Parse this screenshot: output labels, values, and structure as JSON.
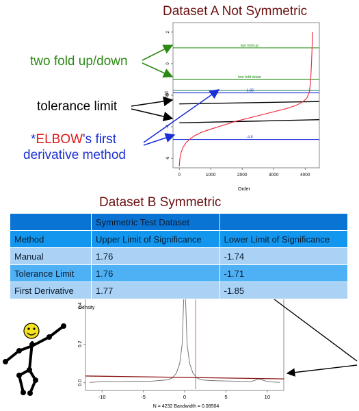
{
  "annotations": {
    "two_fold": "two fold up/down",
    "tolerance": "tolerance limit",
    "elbow_star": "*",
    "elbow_word": "ELBOW",
    "elbow_rest": "'s first",
    "elbow_line2": "derivative method"
  },
  "table": {
    "title": "Dataset B Symmetric",
    "group_header": "Symmetric Test Dataset",
    "columns": [
      "Method",
      "Upper Limit of Significance",
      "Lower Limit of Significance"
    ],
    "rows": [
      [
        "Manual",
        "1.76",
        "-1.74"
      ],
      [
        "Tolerance Limit",
        "1.76",
        "-1.71"
      ],
      [
        "First Derivative",
        "1.77",
        "-1.85"
      ]
    ]
  },
  "colors": {
    "title": "#6b0f0f",
    "two_fold": "#2b8a14",
    "tolerance": "#000000",
    "elbow_blue": "#1a2fd6",
    "elbow_red": "#e01818",
    "curve": "#ee3040",
    "density": "#777777",
    "trend": "#8b1010"
  },
  "chart_data": [
    {
      "type": "line",
      "title": "Dataset A Not Symmetric",
      "xlabel": "Order",
      "ylabel": "Fold",
      "xlim": [
        -200,
        4450
      ],
      "ylim": [
        -6.6,
        2.6
      ],
      "xticks": [
        0,
        1000,
        2000,
        3000,
        4000
      ],
      "yticks": [
        2,
        0,
        -2,
        -4,
        -6
      ],
      "grid": false,
      "series": [
        {
          "x": [
            0,
            20,
            60,
            120,
            220,
            350,
            500,
            700,
            1000,
            1400,
            1800,
            2200,
            2600,
            3000,
            3400,
            3700,
            3900,
            4050,
            4130,
            4170,
            4200,
            4220,
            4232
          ],
          "y": [
            -6.5,
            -6.0,
            -5.6,
            -5.3,
            -5.0,
            -4.75,
            -4.55,
            -4.35,
            -4.15,
            -3.9,
            -3.65,
            -3.45,
            -3.25,
            -3.05,
            -2.85,
            -2.65,
            -2.45,
            -2.2,
            -1.8,
            -1.2,
            0.0,
            1.0,
            2.0
          ]
        }
      ],
      "hlines": [
        {
          "y": 1.0,
          "color": "#1d8a0e",
          "label": "two fold up"
        },
        {
          "y": -1.0,
          "color": "#1d8a0e",
          "label": "two fold down"
        },
        {
          "y": -1.7,
          "color": "#2f8a80",
          "label": ""
        },
        {
          "y": -1.85,
          "color": "#1a2fd6",
          "label": "-1.85"
        },
        {
          "y": -4.8,
          "color": "#1a2fd6",
          "label": "-4.8"
        }
      ],
      "tolerance_lines": [
        {
          "x0": 0,
          "y0": -2.55,
          "x1": 4450,
          "y1": -2.4
        },
        {
          "x0": 0,
          "y0": -3.75,
          "x1": 4450,
          "y1": -3.55
        }
      ]
    },
    {
      "type": "line",
      "title": "",
      "xlabel": "N = 4232   Bandwidth = 0.08504",
      "ylabel": "Density",
      "xlim": [
        -12,
        12
      ],
      "ylim": [
        -0.04,
        0.5
      ],
      "xticks": [
        -10,
        -5,
        0,
        5,
        10
      ],
      "yticks": [
        0.0,
        0.2,
        0.4
      ],
      "grid": false,
      "series": [
        {
          "x": [
            -11.5,
            -10,
            -8,
            -6,
            -4,
            -3,
            -2,
            -1.5,
            -1,
            -0.6,
            -0.3,
            -0.1,
            0,
            0.1,
            0.3,
            0.6,
            1,
            1.5,
            2,
            3,
            4,
            6,
            8,
            9,
            10,
            11,
            11.5
          ],
          "y": [
            0.002,
            0.006,
            0.006,
            0.008,
            0.008,
            0.012,
            0.015,
            0.025,
            0.05,
            0.1,
            0.2,
            0.45,
            0.55,
            0.45,
            0.2,
            0.1,
            0.05,
            0.025,
            0.015,
            0.012,
            0.01,
            0.008,
            0.006,
            0.02,
            0.006,
            0.003,
            0.002
          ]
        }
      ],
      "vline_x": 0,
      "trend_line": {
        "x0": -12,
        "y0": 0.035,
        "x1": 12,
        "y1": 0.02
      }
    }
  ]
}
